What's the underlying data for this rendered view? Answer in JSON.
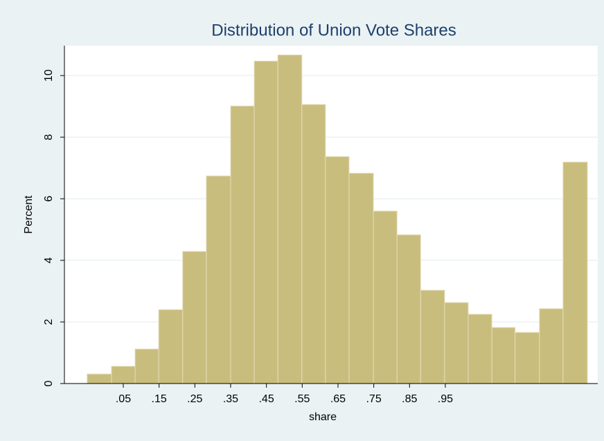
{
  "chart_data": {
    "type": "histogram",
    "title": "Distribution of Union Vote Shares",
    "x_label": "share",
    "y_label": "Percent",
    "bins": [
      -0.051,
      0.017,
      0.083,
      0.149,
      0.216,
      0.282,
      0.35,
      0.416,
      0.482,
      0.549,
      0.615,
      0.681,
      0.749,
      0.815,
      0.881,
      0.948,
      1.014,
      1.08,
      1.145,
      1.213,
      1.279,
      1.347
    ],
    "values": [
      0.31,
      0.56,
      1.12,
      2.4,
      4.29,
      6.74,
      9.01,
      10.47,
      10.67,
      9.06,
      7.37,
      6.83,
      5.6,
      4.83,
      3.03,
      2.63,
      2.25,
      1.82,
      1.66,
      2.43,
      7.19
    ],
    "color": "#c9bd7e",
    "xlim": [
      -0.1145,
      1.376
    ],
    "ylim": [
      0,
      10.97
    ],
    "xticks": [
      {
        "value": 0.05,
        "label": ".05"
      },
      {
        "value": 0.15,
        "label": ".15"
      },
      {
        "value": 0.25,
        "label": ".25"
      },
      {
        "value": 0.35,
        "label": ".35"
      },
      {
        "value": 0.45,
        "label": ".45"
      },
      {
        "value": 0.55,
        "label": ".55"
      },
      {
        "value": 0.65,
        "label": ".65"
      },
      {
        "value": 0.75,
        "label": ".75"
      },
      {
        "value": 0.85,
        "label": ".85"
      },
      {
        "value": 0.95,
        "label": ".95"
      }
    ],
    "yticks": [
      0,
      2,
      4,
      6,
      8,
      10
    ],
    "grid": true
  }
}
